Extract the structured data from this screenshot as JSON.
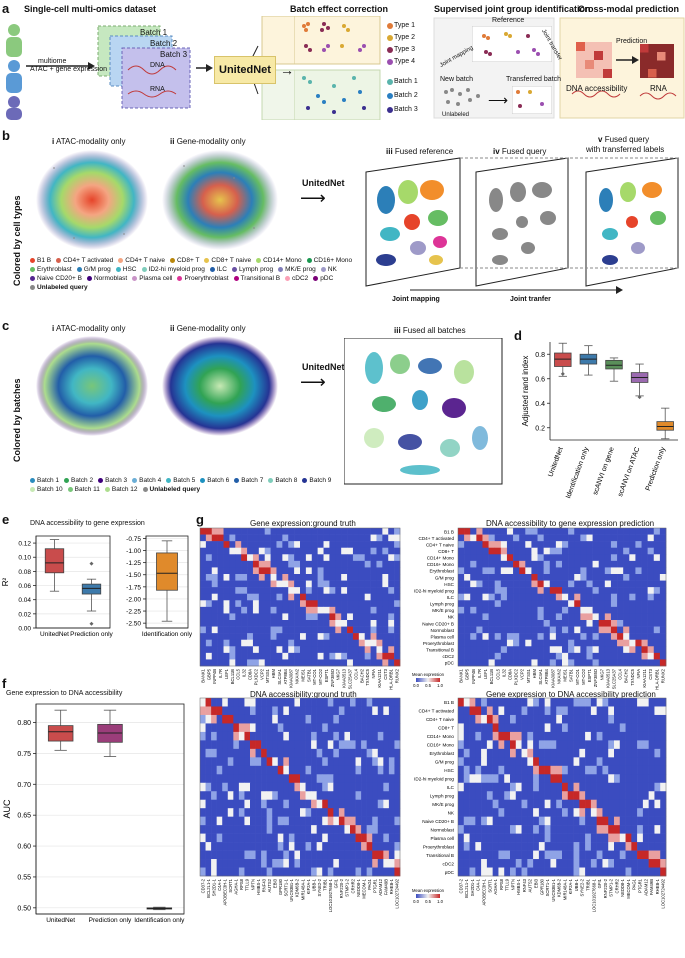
{
  "panels": {
    "a": {
      "label": "a",
      "dataset_title": "Single-cell multi-omics dataset",
      "multiome": "multiome",
      "atac_gene": "ATAC + gene expression",
      "batches": [
        "Batch 1",
        "Batch 2",
        "Batch 3"
      ],
      "dna": "DNA",
      "rna": "RNA",
      "unitednet": "UnitedNet",
      "batch_effect_title": "Batch effect correction",
      "types": [
        "Type 1",
        "Type 2",
        "Type 3",
        "Type 4"
      ],
      "type_colors": [
        "#e07b39",
        "#d9a832",
        "#8a2c55",
        "#9b4fb0"
      ],
      "batch_legend": [
        "Batch 1",
        "Batch 2",
        "Batch 3"
      ],
      "batch_colors": [
        "#5ab4ac",
        "#2a7fc2",
        "#3b2f8f"
      ],
      "supervised_title": "Supervised joint group identification",
      "reference": "Reference",
      "joint_mapping": "Joint mapping",
      "joint_transfer": "Joint transfer",
      "new_batch": "New batch",
      "unlabeled": "Unlabeled",
      "transferred_batch": "Transferred batch",
      "cross_modal_title": "Cross-modal prediction",
      "prediction": "Prediction",
      "dna_access": "DNA accessibility",
      "rna_label": "RNA"
    },
    "b": {
      "label": "b",
      "side": "Colored by cell types",
      "i": "i",
      "i_title": "ATAC-modality only",
      "ii": "ii",
      "ii_title": "Gene-modality only",
      "unitednet": "UnitedNet",
      "iii": "iii",
      "iii_title": "Fused reference",
      "iv": "iv",
      "iv_title": "Fused query",
      "v": "v",
      "v_title": "Fused query",
      "v_title2": "with transferred labels",
      "joint_mapping": "Joint mapping",
      "joint_tranfer": "Joint tranfer",
      "legend": [
        {
          "name": "B1 B",
          "color": "#e6442a"
        },
        {
          "name": "CD4+ T activated",
          "color": "#d6604d"
        },
        {
          "name": "CD4+ T naive",
          "color": "#f4a582"
        },
        {
          "name": "CD8+ T",
          "color": "#b8860b"
        },
        {
          "name": "CD8+ T naive",
          "color": "#e6c34d"
        },
        {
          "name": "CD14+ Mono",
          "color": "#a6d96a"
        },
        {
          "name": "CD16+ Mono",
          "color": "#1a9850"
        },
        {
          "name": "Erythroblast",
          "color": "#66bd63"
        },
        {
          "name": "G/M prog",
          "color": "#2c7fb8"
        },
        {
          "name": "HSC",
          "color": "#41b6c4"
        },
        {
          "name": "ID2-hi myeloid prog",
          "color": "#7fcdbb"
        },
        {
          "name": "ILC",
          "color": "#225ea8"
        },
        {
          "name": "Lymph prog",
          "color": "#6a51a3"
        },
        {
          "name": "MK/E prog",
          "color": "#807dba"
        },
        {
          "name": "NK",
          "color": "#9e9ac8"
        },
        {
          "name": "Naive CD20+ B",
          "color": "#54278f"
        },
        {
          "name": "Normoblast",
          "color": "#3f007d"
        },
        {
          "name": "Plasma cell",
          "color": "#c994c7"
        },
        {
          "name": "Proerythroblast",
          "color": "#dd3497"
        },
        {
          "name": "Transitional B",
          "color": "#ae017e"
        },
        {
          "name": "cDC2",
          "color": "#fa9fb5"
        },
        {
          "name": "pDC",
          "color": "#7a0177"
        },
        {
          "name": "Unlabeled query",
          "color": "#888888"
        }
      ]
    },
    "c": {
      "label": "c",
      "side": "Colored by batches",
      "i": "i",
      "i_title": "ATAC-modality only",
      "ii": "ii",
      "ii_title": "Gene-modality only",
      "unitednet": "UnitedNet",
      "iii": "iii",
      "iii_title": "Fused all batches",
      "legend": [
        {
          "name": "Batch 1",
          "color": "#2b8cbe"
        },
        {
          "name": "Batch 2",
          "color": "#31a354"
        },
        {
          "name": "Batch 3",
          "color": "#3f007d"
        },
        {
          "name": "Batch 4",
          "color": "#6baed6"
        },
        {
          "name": "Batch 5",
          "color": "#41b6c4"
        },
        {
          "name": "Batch 6",
          "color": "#1d91c0"
        },
        {
          "name": "Batch 7",
          "color": "#225ea8"
        },
        {
          "name": "Batch 8",
          "color": "#7fcdbb"
        },
        {
          "name": "Batch 9",
          "color": "#253494"
        },
        {
          "name": "Batch 10",
          "color": "#c7e9b4"
        },
        {
          "name": "Batch 11",
          "color": "#78c679"
        },
        {
          "name": "Batch 12",
          "color": "#addd8e"
        },
        {
          "name": "Unlabeled query",
          "color": "#888888"
        }
      ]
    },
    "d": {
      "label": "d"
    },
    "e": {
      "label": "e",
      "title": "DNA accessibility to gene expression"
    },
    "f": {
      "label": "f",
      "title": "Gene expression to DNA accessibility"
    },
    "g": {
      "label": "g",
      "hm1_title": "Gene expression:ground truth",
      "hm2_title": "DNA accessibility to gene expression prediction",
      "hm3_title": "DNA accessibility:ground truth",
      "hm4_title": "Gene expression to DNA accessibility prediction",
      "mean_expression": "Mean expression",
      "mean_expression2": "Mean expression",
      "colorbar_ticks": [
        "0.0",
        "0.5",
        "1.0"
      ],
      "cell_types": [
        "B1 B",
        "CD4+ T activated",
        "CD4+ T naive",
        "CD8+ T",
        "CD14+ Mono",
        "CD16+ Mono",
        "Erythroblast",
        "G/M prog",
        "HSC",
        "ID2-hi myeloid prog",
        "ILC",
        "Lymph prog",
        "MK/E prog",
        "NK",
        "Naive CD20+ B",
        "Normoblast",
        "Plasma cell",
        "Proerythroblast",
        "Transitional B",
        "cDC2",
        "pDC"
      ],
      "genes_top": [
        "BANK1",
        "GBP5",
        "INPP4B",
        "IL7R",
        "LEF1",
        "BCL11B",
        "CCL5",
        "IL32",
        "CD8A",
        "PLXDC2",
        "VCP2",
        "MTSS1",
        "HBM",
        "SLC4A1",
        "ATP8B4",
        "KIAA0087",
        "NKAIN2",
        "MEIS1",
        "SATB1",
        "MT-CO1",
        "MT-CO2",
        "ESPT1",
        "ZNF385D",
        "NKG7",
        "KIAA0513",
        "SLC25A37",
        "CCL4",
        "BACH2",
        "TXNDC5",
        "NFIA",
        "KIAA1211",
        "CST3",
        "HLA-DRB1",
        "RUNX2"
      ],
      "genes_bottom": [
        "CD37-2",
        "BCL2L1-1",
        "SH2D1-1",
        "C4A-1",
        "APOBEC3H-1",
        "SCRT1",
        "AGHA-1",
        "RPS8",
        "TTLL9",
        "NPTN",
        "HMBS-1",
        "RNF43",
        "AUTS2",
        "EBI3",
        "GPR180",
        "SCRT1-1",
        "UNC93B1-1",
        "KDM6B-2",
        "MIR148A-1",
        "KIF2A-1",
        "UBB-1",
        "SYNE2-2",
        "TRIB1",
        "LOC101927668-1",
        "GFI1",
        "RNF220-2",
        "STMP1-2",
        "CRHR2",
        "NEDD8-1",
        "MECOM-1",
        "PAG1",
        "PTGR1",
        "ADAM12",
        "FAM49B",
        "RHEB-1",
        "LOC102724492"
      ]
    }
  },
  "chart_data": [
    {
      "type": "box",
      "panel": "d",
      "ylabel": "Adjusted rand index",
      "ylim": [
        0.1,
        0.9
      ],
      "yticks": [
        0.2,
        0.4,
        0.6,
        0.8
      ],
      "categories": [
        "UnitedNet",
        "Identification only",
        "scANVI on gene",
        "scANVI on ATAC",
        "Prediction only"
      ],
      "colors": [
        "#c94c4c",
        "#3d7aab",
        "#5a8f5a",
        "#9b6ab0",
        "#e08a2b"
      ],
      "boxes": [
        {
          "min": 0.62,
          "q1": 0.7,
          "median": 0.76,
          "q3": 0.81,
          "max": 0.89
        },
        {
          "min": 0.63,
          "q1": 0.72,
          "median": 0.76,
          "q3": 0.8,
          "max": 0.87
        },
        {
          "min": 0.58,
          "q1": 0.68,
          "median": 0.71,
          "q3": 0.75,
          "max": 0.77
        },
        {
          "min": 0.46,
          "q1": 0.57,
          "median": 0.61,
          "q3": 0.65,
          "max": 0.72
        },
        {
          "min": 0.11,
          "q1": 0.18,
          "median": 0.21,
          "q3": 0.25,
          "max": 0.36
        }
      ],
      "outliers": [
        {
          "box": 3,
          "value": 0.45
        },
        {
          "box": 0,
          "value": 0.64
        }
      ]
    },
    {
      "type": "box",
      "panel": "e-left",
      "ylabel": "R²",
      "ylim": [
        0.0,
        0.13
      ],
      "yticks": [
        0.0,
        0.02,
        0.04,
        0.06,
        0.08,
        0.1,
        0.12
      ],
      "categories": [
        "UnitedNet",
        "Prediction only"
      ],
      "colors": [
        "#c94c4c",
        "#3d7aab"
      ],
      "boxes": [
        {
          "min": 0.052,
          "q1": 0.078,
          "median": 0.092,
          "q3": 0.112,
          "max": 0.125
        },
        {
          "min": 0.024,
          "q1": 0.048,
          "median": 0.056,
          "q3": 0.062,
          "max": 0.069
        }
      ],
      "outliers": [
        {
          "box": 1,
          "value": 0.091
        },
        {
          "box": 1,
          "value": 0.006
        }
      ]
    },
    {
      "type": "box",
      "panel": "e-right",
      "ylim": [
        -2.6,
        -0.7
      ],
      "yticks": [
        -0.75,
        -1.0,
        -1.25,
        -1.5,
        -1.75,
        -2.0,
        -2.25,
        -2.5
      ],
      "categories": [
        "Identification only"
      ],
      "colors": [
        "#e08a2b"
      ],
      "boxes": [
        {
          "min": -2.46,
          "q1": -1.82,
          "median": -1.47,
          "q3": -1.05,
          "max": -0.8
        }
      ],
      "outliers": []
    },
    {
      "type": "box",
      "panel": "f",
      "ylabel": "AUC",
      "ylim": [
        0.49,
        0.83
      ],
      "yticks": [
        0.5,
        0.55,
        0.6,
        0.65,
        0.7,
        0.75,
        0.8
      ],
      "categories": [
        "UnitedNet",
        "Prediction only",
        "Identification only"
      ],
      "colors": [
        "#c94c4c",
        "#9b3d7a",
        "#888888"
      ],
      "boxes": [
        {
          "min": 0.755,
          "q1": 0.77,
          "median": 0.785,
          "q3": 0.795,
          "max": 0.82
        },
        {
          "min": 0.745,
          "q1": 0.768,
          "median": 0.783,
          "q3": 0.797,
          "max": 0.82
        },
        {
          "min": 0.497,
          "q1": 0.498,
          "median": 0.499,
          "q3": 0.5,
          "max": 0.501
        }
      ],
      "outliers": []
    }
  ]
}
